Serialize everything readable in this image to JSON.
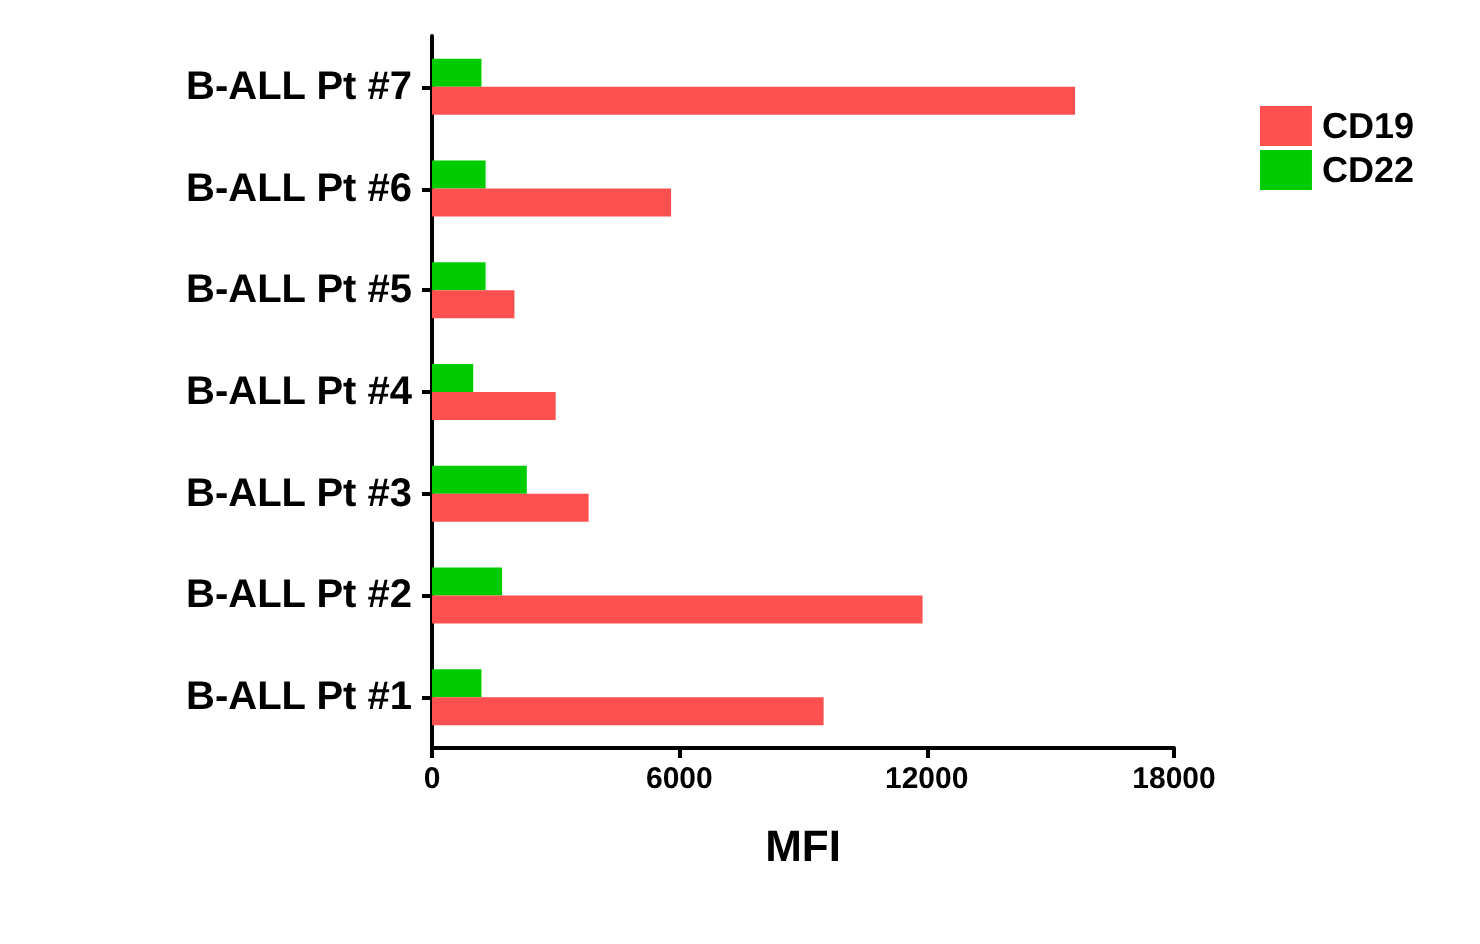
{
  "chart_data": {
    "type": "bar",
    "orientation": "horizontal",
    "categories": [
      "B-ALL Pt #7",
      "B-ALL Pt #6",
      "B-ALL Pt #5",
      "B-ALL Pt #4",
      "B-ALL Pt #3",
      "B-ALL Pt #2",
      "B-ALL Pt #1"
    ],
    "series": [
      {
        "name": "CD19",
        "color": "#ff5050",
        "values": [
          15600,
          5800,
          2000,
          3000,
          3800,
          11900,
          9500
        ]
      },
      {
        "name": "CD22",
        "color": "#00cc00",
        "values": [
          1200,
          1300,
          1300,
          1000,
          2300,
          1700,
          1200
        ]
      }
    ],
    "xlabel": "MFI",
    "xlim": [
      0,
      18000
    ],
    "xticks": [
      0,
      6000,
      12000,
      18000
    ],
    "grid": false,
    "legend": "top right"
  }
}
